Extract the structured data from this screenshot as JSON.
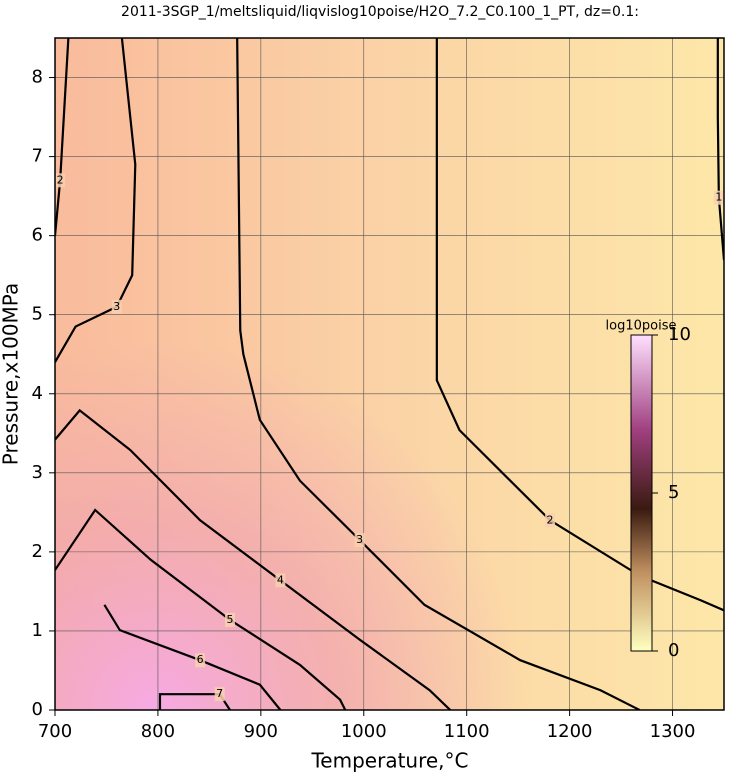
{
  "chart_data": {
    "type": "contour",
    "title": "2011-3SGP_1/meltsliquid/liqvislog10poise/H2O_7.2_C0.100_1_PT, dz=0.1:",
    "x_label": "Temperature,°C",
    "y_label": "Pressure,x100MPa",
    "xlim": [
      700,
      1350
    ],
    "ylim": [
      0,
      8.5
    ],
    "xticks": [
      700,
      800,
      900,
      1000,
      1100,
      1200,
      1300
    ],
    "yticks": [
      0,
      1,
      2,
      3,
      4,
      5,
      6,
      7,
      8
    ],
    "grid": true,
    "colorbar": {
      "label": "log10poise",
      "lim": [
        0,
        10
      ],
      "ticks": [
        0,
        5,
        10
      ]
    },
    "contours": [
      {
        "level": 3,
        "x": [
          765,
          778,
          775,
          760,
          720,
          700
        ],
        "y": [
          8.5,
          6.9,
          5.5,
          5.1,
          4.85,
          4.4
        ]
      },
      {
        "level": 3,
        "x": [
          877,
          880,
          883,
          899,
          938,
          996,
          1059,
          1152,
          1230,
          1268
        ],
        "y": [
          8.5,
          4.8,
          4.5,
          3.67,
          2.9,
          2.15,
          1.33,
          0.63,
          0.25,
          0
        ]
      },
      {
        "level": 2,
        "x": [
          1071,
          1071,
          1071,
          1093,
          1181,
          1268,
          1327,
          1350
        ],
        "y": [
          8.5,
          5.2,
          4.17,
          3.54,
          2.4,
          1.7,
          1.39,
          1.26
        ]
      },
      {
        "level": 2,
        "x": [
          713,
          705,
          700
        ],
        "y": [
          8.5,
          6.7,
          6.0
        ]
      },
      {
        "level": 1,
        "x": [
          1344,
          1344,
          1345,
          1350
        ],
        "y": [
          8.5,
          7.5,
          6.48,
          5.69
        ]
      },
      {
        "level": 4,
        "x": [
          700,
          724,
          773,
          841,
          919,
          996,
          1064,
          1084
        ],
        "y": [
          3.42,
          3.79,
          3.29,
          2.4,
          1.64,
          0.89,
          0.25,
          0
        ]
      },
      {
        "level": 5,
        "x": [
          700,
          739,
          793,
          870,
          938,
          977,
          982
        ],
        "y": [
          1.77,
          2.53,
          1.9,
          1.14,
          0.57,
          0.13,
          0
        ]
      },
      {
        "level": 6,
        "x": [
          748,
          763,
          841,
          899,
          919
        ],
        "y": [
          1.33,
          1.01,
          0.63,
          0.32,
          0
        ]
      },
      {
        "level": 7,
        "x": [
          802,
          802,
          860,
          870
        ],
        "y": [
          0,
          0.2,
          0.2,
          0
        ]
      }
    ]
  }
}
